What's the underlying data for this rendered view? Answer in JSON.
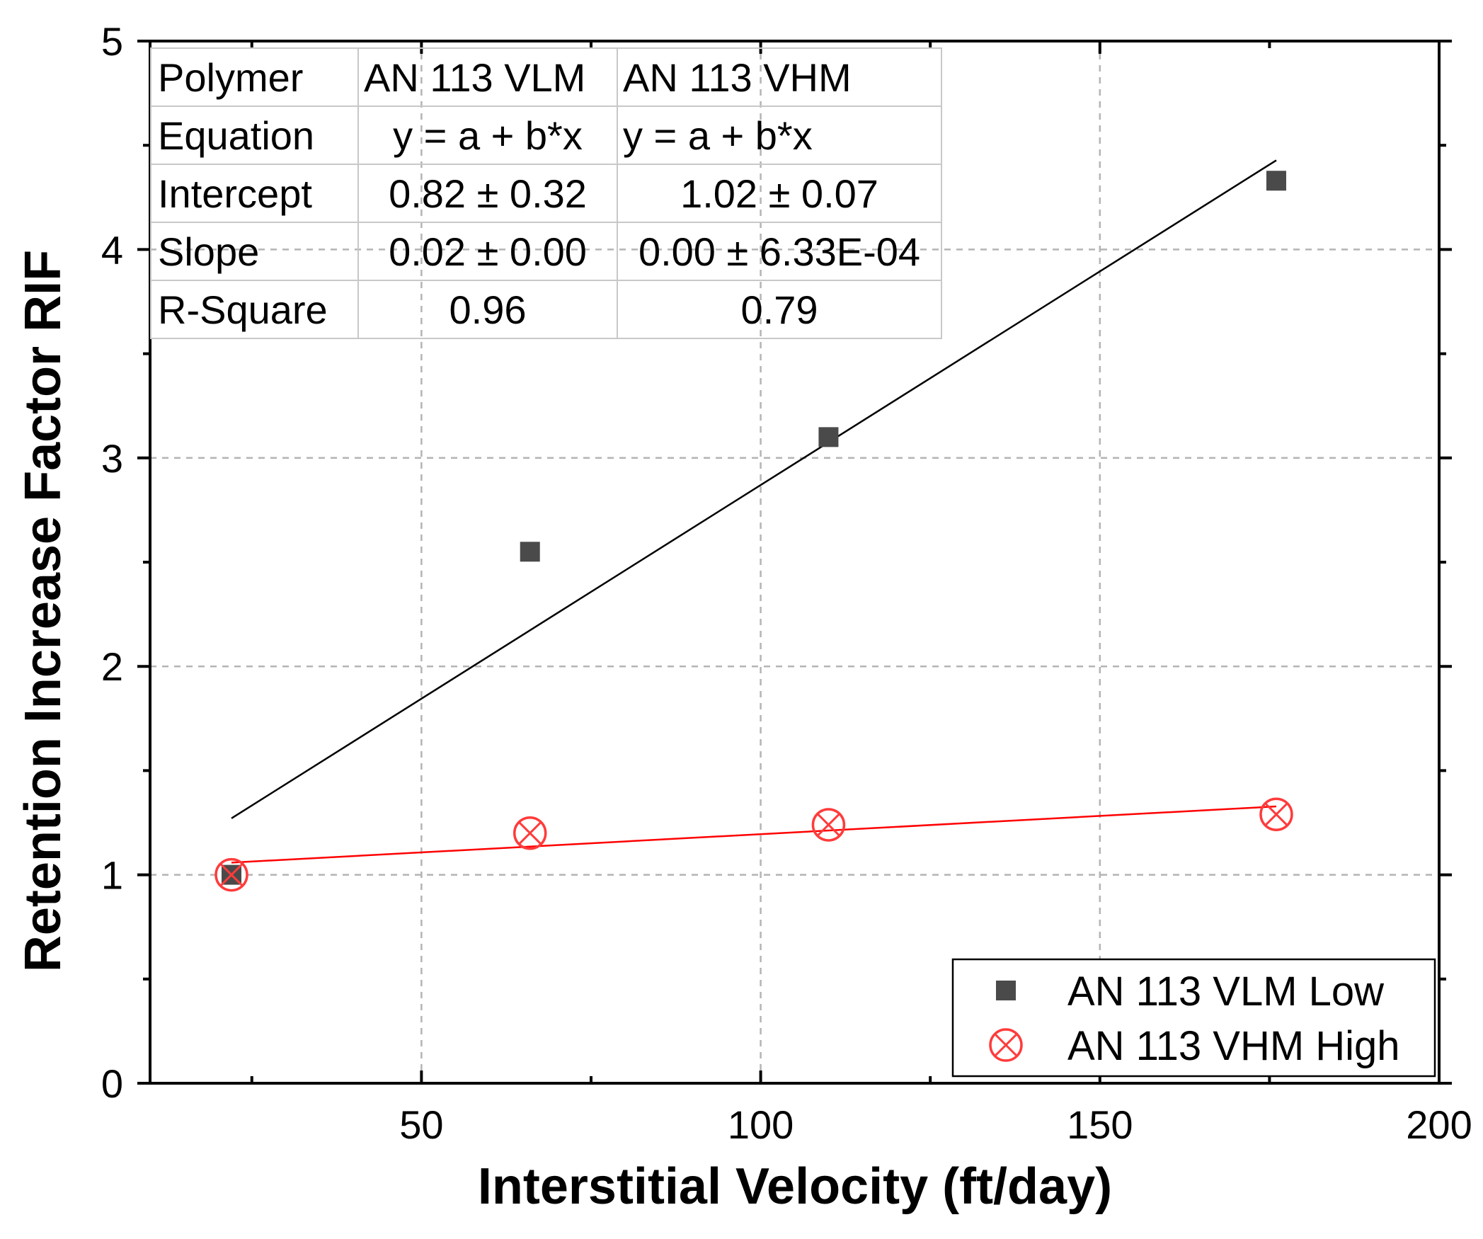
{
  "chart_data": {
    "type": "scatter",
    "xlabel": "Interstitial Velocity (ft/day)",
    "ylabel": "Retention Increase Factor RIF",
    "xlim": [
      10,
      200
    ],
    "ylim": [
      0,
      5
    ],
    "x_ticks": [
      50,
      100,
      150,
      200
    ],
    "x_ticks_display": [
      "50",
      "100",
      "150",
      "200"
    ],
    "y_ticks": [
      0,
      1,
      2,
      3,
      4,
      5
    ],
    "y_ticks_display": [
      "0",
      "1",
      "2",
      "3",
      "4",
      "5"
    ],
    "grid": true,
    "legend_position": "bottom-right",
    "series": [
      {
        "name": "AN 113 VLM Low",
        "marker": "square",
        "color": "#4a4a4a",
        "fit_color": "#000000",
        "x": [
          22,
          66,
          110,
          176
        ],
        "y": [
          1.0,
          2.55,
          3.1,
          4.33
        ],
        "fit": {
          "intercept": 0.82,
          "slope": 0.0205,
          "x_range": [
            22,
            176
          ]
        }
      },
      {
        "name": "AN 113 VHM High",
        "marker": "circle-x",
        "color": "#ff3b3b",
        "fit_color": "#ff0000",
        "x": [
          22,
          66,
          110,
          176
        ],
        "y": [
          1.0,
          1.2,
          1.24,
          1.29
        ],
        "fit": {
          "intercept": 1.02,
          "slope": 0.00175,
          "x_range": [
            22,
            176
          ]
        }
      }
    ],
    "fit_table": {
      "header": [
        "Polymer",
        "AN 113 VLM",
        "AN 113 VHM"
      ],
      "rows": [
        [
          "Equation",
          "y = a + b*x",
          "y = a + b*x"
        ],
        [
          "Intercept",
          "0.82 ± 0.32",
          "1.02 ± 0.07"
        ],
        [
          "Slope",
          "0.02 ± 0.00",
          "0.00 ± 6.33E-04"
        ],
        [
          "R-Square",
          "0.96",
          "0.79"
        ]
      ]
    }
  }
}
